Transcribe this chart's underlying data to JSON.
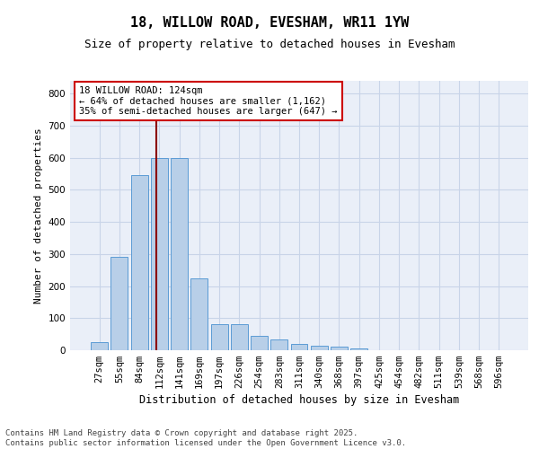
{
  "title": "18, WILLOW ROAD, EVESHAM, WR11 1YW",
  "subtitle": "Size of property relative to detached houses in Evesham",
  "xlabel": "Distribution of detached houses by size in Evesham",
  "ylabel": "Number of detached properties",
  "categories": [
    "27sqm",
    "55sqm",
    "84sqm",
    "112sqm",
    "141sqm",
    "169sqm",
    "197sqm",
    "226sqm",
    "254sqm",
    "283sqm",
    "311sqm",
    "340sqm",
    "368sqm",
    "397sqm",
    "425sqm",
    "454sqm",
    "482sqm",
    "511sqm",
    "539sqm",
    "568sqm",
    "596sqm"
  ],
  "values": [
    25,
    290,
    545,
    600,
    600,
    225,
    80,
    80,
    45,
    35,
    20,
    15,
    10,
    5,
    0,
    0,
    0,
    0,
    0,
    0,
    0
  ],
  "bar_color": "#b8cfe8",
  "bar_edge_color": "#5b9bd5",
  "vline_color": "#8b0000",
  "vline_x_index": 3,
  "annotation_text": "18 WILLOW ROAD: 124sqm\n← 64% of detached houses are smaller (1,162)\n35% of semi-detached houses are larger (647) →",
  "annotation_box_facecolor": "#ffffff",
  "annotation_box_edgecolor": "#cc0000",
  "ylim": [
    0,
    840
  ],
  "yticks": [
    0,
    100,
    200,
    300,
    400,
    500,
    600,
    700,
    800
  ],
  "grid_color": "#c8d4e8",
  "background_color": "#eaeff8",
  "footer_line1": "Contains HM Land Registry data © Crown copyright and database right 2025.",
  "footer_line2": "Contains public sector information licensed under the Open Government Licence v3.0.",
  "title_fontsize": 11,
  "subtitle_fontsize": 9,
  "xlabel_fontsize": 8.5,
  "ylabel_fontsize": 8,
  "tick_fontsize": 7.5,
  "footer_fontsize": 6.5,
  "ann_fontsize": 7.5
}
